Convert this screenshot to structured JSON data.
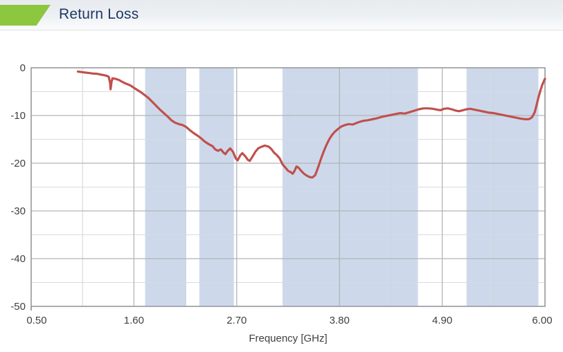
{
  "header": {
    "title": "Return Loss",
    "accent_color": "#8dc63f",
    "title_color": "#1f3864"
  },
  "chart_data": {
    "type": "line",
    "title": "Return Loss",
    "xlabel": "Frequency [GHz]",
    "ylabel": "",
    "xlim": [
      0.5,
      6.0
    ],
    "ylim": [
      -50,
      0
    ],
    "grid": true,
    "legend": false,
    "x_ticks_major": [
      0.5,
      1.6,
      2.7,
      3.8,
      4.9,
      6.0
    ],
    "x_tick_labels": [
      "0.50",
      "1.60",
      "2.70",
      "3.80",
      "4.90",
      "6.00"
    ],
    "x_ticks_minor": [
      1.05,
      2.15,
      3.25,
      4.35,
      5.45
    ],
    "y_ticks_major": [
      0,
      -10,
      -20,
      -30,
      -40,
      -50
    ],
    "y_tick_labels": [
      "0",
      "-10",
      "-20",
      "-30",
      "-40",
      "-50"
    ],
    "y_ticks_minor": [
      -5,
      -15,
      -25,
      -35,
      -45
    ],
    "highlight_bands_ghz": [
      [
        1.72,
        2.16
      ],
      [
        2.3,
        2.67
      ],
      [
        3.19,
        4.64
      ],
      [
        5.16,
        5.93
      ]
    ],
    "band_color": "#cdd9eb",
    "line_color": "#c0504d",
    "series": [
      {
        "name": "Return Loss",
        "points": [
          [
            1.0,
            -0.8
          ],
          [
            1.04,
            -0.9
          ],
          [
            1.08,
            -1.0
          ],
          [
            1.12,
            -1.1
          ],
          [
            1.16,
            -1.2
          ],
          [
            1.2,
            -1.25
          ],
          [
            1.24,
            -1.4
          ],
          [
            1.28,
            -1.55
          ],
          [
            1.31,
            -1.7
          ],
          [
            1.33,
            -1.9
          ],
          [
            1.345,
            -3.2
          ],
          [
            1.35,
            -4.5
          ],
          [
            1.36,
            -3.0
          ],
          [
            1.37,
            -2.2
          ],
          [
            1.4,
            -2.3
          ],
          [
            1.44,
            -2.55
          ],
          [
            1.47,
            -2.9
          ],
          [
            1.5,
            -3.2
          ],
          [
            1.54,
            -3.5
          ],
          [
            1.57,
            -3.8
          ],
          [
            1.6,
            -4.2
          ],
          [
            1.64,
            -4.7
          ],
          [
            1.68,
            -5.2
          ],
          [
            1.72,
            -5.8
          ],
          [
            1.76,
            -6.4
          ],
          [
            1.8,
            -7.2
          ],
          [
            1.84,
            -8.0
          ],
          [
            1.88,
            -8.8
          ],
          [
            1.92,
            -9.5
          ],
          [
            1.96,
            -10.2
          ],
          [
            2.0,
            -11.0
          ],
          [
            2.04,
            -11.5
          ],
          [
            2.08,
            -11.8
          ],
          [
            2.12,
            -12.0
          ],
          [
            2.16,
            -12.4
          ],
          [
            2.2,
            -13.1
          ],
          [
            2.24,
            -13.7
          ],
          [
            2.28,
            -14.2
          ],
          [
            2.32,
            -14.8
          ],
          [
            2.36,
            -15.5
          ],
          [
            2.4,
            -16.0
          ],
          [
            2.44,
            -16.4
          ],
          [
            2.47,
            -17.1
          ],
          [
            2.5,
            -17.4
          ],
          [
            2.53,
            -17.1
          ],
          [
            2.56,
            -17.8
          ],
          [
            2.58,
            -18.1
          ],
          [
            2.6,
            -17.5
          ],
          [
            2.63,
            -16.9
          ],
          [
            2.66,
            -17.6
          ],
          [
            2.69,
            -19.0
          ],
          [
            2.71,
            -19.4
          ],
          [
            2.74,
            -18.3
          ],
          [
            2.76,
            -17.9
          ],
          [
            2.79,
            -18.5
          ],
          [
            2.82,
            -19.3
          ],
          [
            2.84,
            -19.5
          ],
          [
            2.87,
            -18.6
          ],
          [
            2.9,
            -17.6
          ],
          [
            2.93,
            -16.9
          ],
          [
            2.96,
            -16.6
          ],
          [
            3.0,
            -16.3
          ],
          [
            3.04,
            -16.5
          ],
          [
            3.07,
            -17.0
          ],
          [
            3.1,
            -17.8
          ],
          [
            3.13,
            -18.3
          ],
          [
            3.16,
            -19.0
          ],
          [
            3.19,
            -20.2
          ],
          [
            3.22,
            -20.9
          ],
          [
            3.25,
            -21.6
          ],
          [
            3.28,
            -21.9
          ],
          [
            3.3,
            -22.2
          ],
          [
            3.32,
            -21.6
          ],
          [
            3.34,
            -20.7
          ],
          [
            3.36,
            -20.9
          ],
          [
            3.39,
            -21.6
          ],
          [
            3.42,
            -22.2
          ],
          [
            3.45,
            -22.6
          ],
          [
            3.48,
            -22.9
          ],
          [
            3.51,
            -23.0
          ],
          [
            3.54,
            -22.5
          ],
          [
            3.56,
            -21.5
          ],
          [
            3.58,
            -20.4
          ],
          [
            3.6,
            -19.2
          ],
          [
            3.63,
            -17.6
          ],
          [
            3.66,
            -16.2
          ],
          [
            3.69,
            -15.0
          ],
          [
            3.72,
            -14.1
          ],
          [
            3.75,
            -13.4
          ],
          [
            3.78,
            -12.9
          ],
          [
            3.82,
            -12.3
          ],
          [
            3.86,
            -12.0
          ],
          [
            3.9,
            -11.8
          ],
          [
            3.94,
            -11.9
          ],
          [
            3.98,
            -11.6
          ],
          [
            4.02,
            -11.3
          ],
          [
            4.06,
            -11.1
          ],
          [
            4.1,
            -11.0
          ],
          [
            4.15,
            -10.8
          ],
          [
            4.2,
            -10.6
          ],
          [
            4.25,
            -10.3
          ],
          [
            4.3,
            -10.1
          ],
          [
            4.35,
            -9.9
          ],
          [
            4.4,
            -9.7
          ],
          [
            4.45,
            -9.5
          ],
          [
            4.5,
            -9.6
          ],
          [
            4.55,
            -9.3
          ],
          [
            4.6,
            -9.0
          ],
          [
            4.65,
            -8.7
          ],
          [
            4.7,
            -8.5
          ],
          [
            4.75,
            -8.5
          ],
          [
            4.8,
            -8.6
          ],
          [
            4.85,
            -8.8
          ],
          [
            4.88,
            -8.9
          ],
          [
            4.92,
            -8.6
          ],
          [
            4.96,
            -8.5
          ],
          [
            5.0,
            -8.7
          ],
          [
            5.05,
            -9.0
          ],
          [
            5.08,
            -9.1
          ],
          [
            5.12,
            -8.9
          ],
          [
            5.16,
            -8.7
          ],
          [
            5.2,
            -8.6
          ],
          [
            5.25,
            -8.8
          ],
          [
            5.3,
            -9.0
          ],
          [
            5.35,
            -9.2
          ],
          [
            5.4,
            -9.4
          ],
          [
            5.45,
            -9.5
          ],
          [
            5.5,
            -9.7
          ],
          [
            5.55,
            -9.9
          ],
          [
            5.6,
            -10.1
          ],
          [
            5.65,
            -10.3
          ],
          [
            5.7,
            -10.5
          ],
          [
            5.75,
            -10.7
          ],
          [
            5.8,
            -10.8
          ],
          [
            5.83,
            -10.75
          ],
          [
            5.86,
            -10.4
          ],
          [
            5.89,
            -9.3
          ],
          [
            5.91,
            -7.8
          ],
          [
            5.93,
            -6.2
          ],
          [
            5.95,
            -4.8
          ],
          [
            5.97,
            -3.6
          ],
          [
            5.99,
            -2.7
          ],
          [
            6.0,
            -2.3
          ]
        ]
      }
    ]
  }
}
